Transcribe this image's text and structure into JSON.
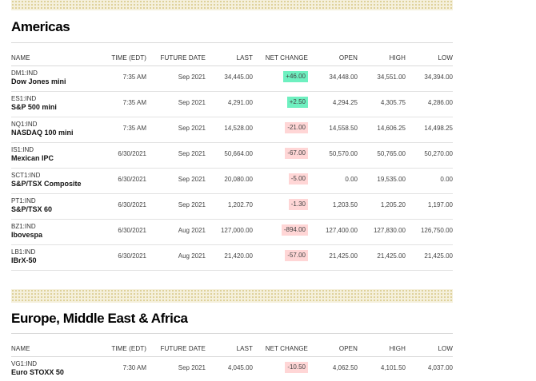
{
  "columns": [
    "NAME",
    "TIME (EDT)",
    "FUTURE DATE",
    "LAST",
    "NET CHANGE",
    "OPEN",
    "HIGH",
    "LOW"
  ],
  "sections": [
    {
      "title": "Americas",
      "rows": [
        {
          "ticker": "DM1:IND",
          "name": "Dow Jones mini",
          "time": "7:35 AM",
          "future_date": "Sep 2021",
          "last": "34,445.00",
          "net_change": "+46.00",
          "direction": "up",
          "open": "34,448.00",
          "high": "34,551.00",
          "low": "34,394.00"
        },
        {
          "ticker": "ES1:IND",
          "name": "S&P 500 mini",
          "time": "7:35 AM",
          "future_date": "Sep 2021",
          "last": "4,291.00",
          "net_change": "+2.50",
          "direction": "up",
          "open": "4,294.25",
          "high": "4,305.75",
          "low": "4,286.00"
        },
        {
          "ticker": "NQ1:IND",
          "name": "NASDAQ 100 mini",
          "time": "7:35 AM",
          "future_date": "Sep 2021",
          "last": "14,528.00",
          "net_change": "-21.00",
          "direction": "down",
          "open": "14,558.50",
          "high": "14,606.25",
          "low": "14,498.25"
        },
        {
          "ticker": "IS1:IND",
          "name": "Mexican IPC",
          "time": "6/30/2021",
          "future_date": "Sep 2021",
          "last": "50,664.00",
          "net_change": "-67.00",
          "direction": "down",
          "open": "50,570.00",
          "high": "50,765.00",
          "low": "50,270.00"
        },
        {
          "ticker": "SCT1:IND",
          "name": "S&P/TSX Composite",
          "time": "6/30/2021",
          "future_date": "Sep 2021",
          "last": "20,080.00",
          "net_change": "-5.00",
          "direction": "down",
          "open": "0.00",
          "high": "19,535.00",
          "low": "0.00"
        },
        {
          "ticker": "PT1:IND",
          "name": "S&P/TSX 60",
          "time": "6/30/2021",
          "future_date": "Sep 2021",
          "last": "1,202.70",
          "net_change": "-1.30",
          "direction": "down",
          "open": "1,203.50",
          "high": "1,205.20",
          "low": "1,197.00"
        },
        {
          "ticker": "BZ1:IND",
          "name": "Ibovespa",
          "time": "6/30/2021",
          "future_date": "Aug 2021",
          "last": "127,000.00",
          "net_change": "-894.00",
          "direction": "down",
          "open": "127,400.00",
          "high": "127,830.00",
          "low": "126,750.00"
        },
        {
          "ticker": "LB1:IND",
          "name": "IBrX-50",
          "time": "6/30/2021",
          "future_date": "Aug 2021",
          "last": "21,420.00",
          "net_change": "-57.00",
          "direction": "down",
          "open": "21,425.00",
          "high": "21,425.00",
          "low": "21,425.00"
        }
      ]
    },
    {
      "title": "Europe, Middle East & Africa",
      "rows": [
        {
          "ticker": "VG1:IND",
          "name": "Euro STOXX 50",
          "time": "7:30 AM",
          "future_date": "Sep 2021",
          "last": "4,045.00",
          "net_change": "-10.50",
          "direction": "down",
          "open": "4,062.50",
          "high": "4,101.50",
          "low": "4,037.00"
        }
      ]
    }
  ],
  "colors": {
    "up": "#6ef0c0",
    "down": "#ffd6d6",
    "band": "#f5f0dc"
  }
}
